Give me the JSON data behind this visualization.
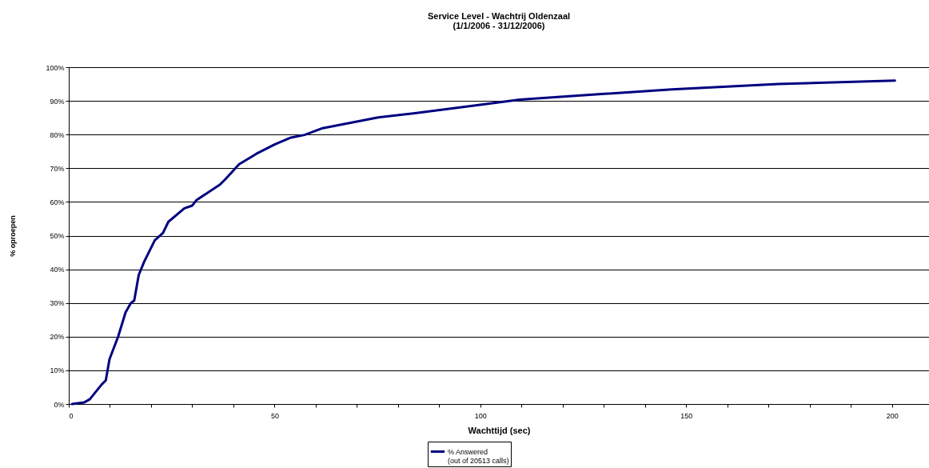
{
  "chart_data": {
    "type": "line",
    "title": "Service Level - Wachtrij Oldenzaal",
    "subtitle": "(1/1/2006 - 31/12/2006)",
    "xlabel": "Wachttijd (sec)",
    "ylabel": "% oproepen",
    "x": [
      0.8,
      3.8,
      5.1,
      8.0,
      9.0,
      9.9,
      12.0,
      13.8,
      15.1,
      15.9,
      17.0,
      18.3,
      20.9,
      22.9,
      24.2,
      28.1,
      30.0,
      31.0,
      36.8,
      38.1,
      41.4,
      45.6,
      50.1,
      54.0,
      57.3,
      61.7,
      75.2,
      83.7,
      99.2,
      109.6,
      128.0,
      146.5,
      172.4,
      200.7
    ],
    "series": [
      {
        "name": "% Answered\n(out of 20513 calls)",
        "color": "#000080",
        "values": [
          0.0,
          0.5,
          1.4,
          5.8,
          7.0,
          13.3,
          20.0,
          27.2,
          30.0,
          30.7,
          38.3,
          42.2,
          48.6,
          50.8,
          54.1,
          58.1,
          58.9,
          60.5,
          65.2,
          66.8,
          71.2,
          74.3,
          77.1,
          79.1,
          79.9,
          81.9,
          85.1,
          86.3,
          88.7,
          90.4,
          91.9,
          93.4,
          95.0,
          96.0
        ]
      }
    ],
    "xlim": [
      0,
      209
    ],
    "xticks": [
      0,
      {
        "value": 10,
        "label": null
      },
      {
        "value": 20,
        "label": null
      },
      {
        "value": 30,
        "label": null
      },
      {
        "value": 40,
        "label": null
      },
      50,
      {
        "value": 60,
        "label": null
      },
      {
        "value": 70,
        "label": null
      },
      {
        "value": 80,
        "label": null
      },
      {
        "value": 90,
        "label": null
      },
      100,
      {
        "value": 110,
        "label": null
      },
      {
        "value": 120,
        "label": null
      },
      {
        "value": 130,
        "label": null
      },
      {
        "value": 140,
        "label": null
      },
      150,
      {
        "value": 160,
        "label": null
      },
      {
        "value": 170,
        "label": null
      },
      {
        "value": 180,
        "label": null
      },
      {
        "value": 190,
        "label": null
      },
      200
    ],
    "ylim": [
      0,
      100
    ],
    "yticks": [
      {
        "value": 0,
        "label": "0%"
      },
      {
        "value": 10,
        "label": "10%"
      },
      {
        "value": 20,
        "label": "20%"
      },
      {
        "value": 30,
        "label": "30%"
      },
      {
        "value": 40,
        "label": "40%"
      },
      {
        "value": 50,
        "label": "50%"
      },
      {
        "value": 60,
        "label": "60%"
      },
      {
        "value": 70,
        "label": "70%"
      },
      {
        "value": 80,
        "label": "80%"
      },
      {
        "value": 90,
        "label": "90%"
      },
      {
        "value": 100,
        "label": "100%"
      }
    ],
    "grid": "y",
    "legend": "bottom",
    "marker": "none",
    "line_style": "solid"
  }
}
